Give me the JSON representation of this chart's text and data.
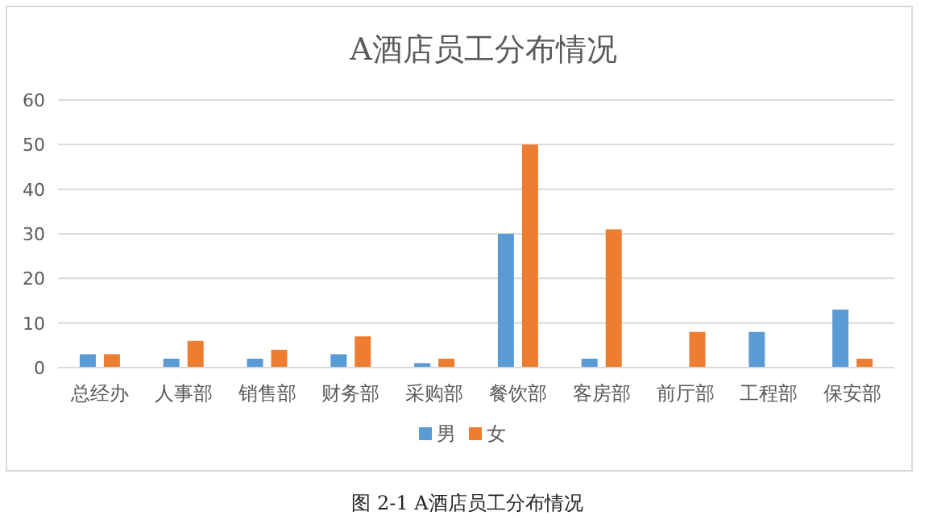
{
  "chart_data": {
    "type": "bar",
    "title": "A酒店员工分布情况",
    "categories": [
      "总经办",
      "人事部",
      "销售部",
      "财务部",
      "采购部",
      "餐饮部",
      "客房部",
      "前厅部",
      "工程部",
      "保安部"
    ],
    "series": [
      {
        "name": "男",
        "color": "#5b9bd5",
        "values": [
          3,
          2,
          2,
          3,
          1,
          30,
          2,
          null,
          8,
          13
        ]
      },
      {
        "name": "女",
        "color": "#ed7d31",
        "values": [
          3,
          6,
          4,
          7,
          2,
          50,
          31,
          8,
          null,
          2
        ]
      }
    ],
    "ylim": [
      0,
      60
    ],
    "yticks": [
      0,
      10,
      20,
      30,
      40,
      50,
      60
    ],
    "grid": "y",
    "legend": "bottom",
    "annotations": [
      "图 2-1 A酒店员工分布情况"
    ]
  }
}
